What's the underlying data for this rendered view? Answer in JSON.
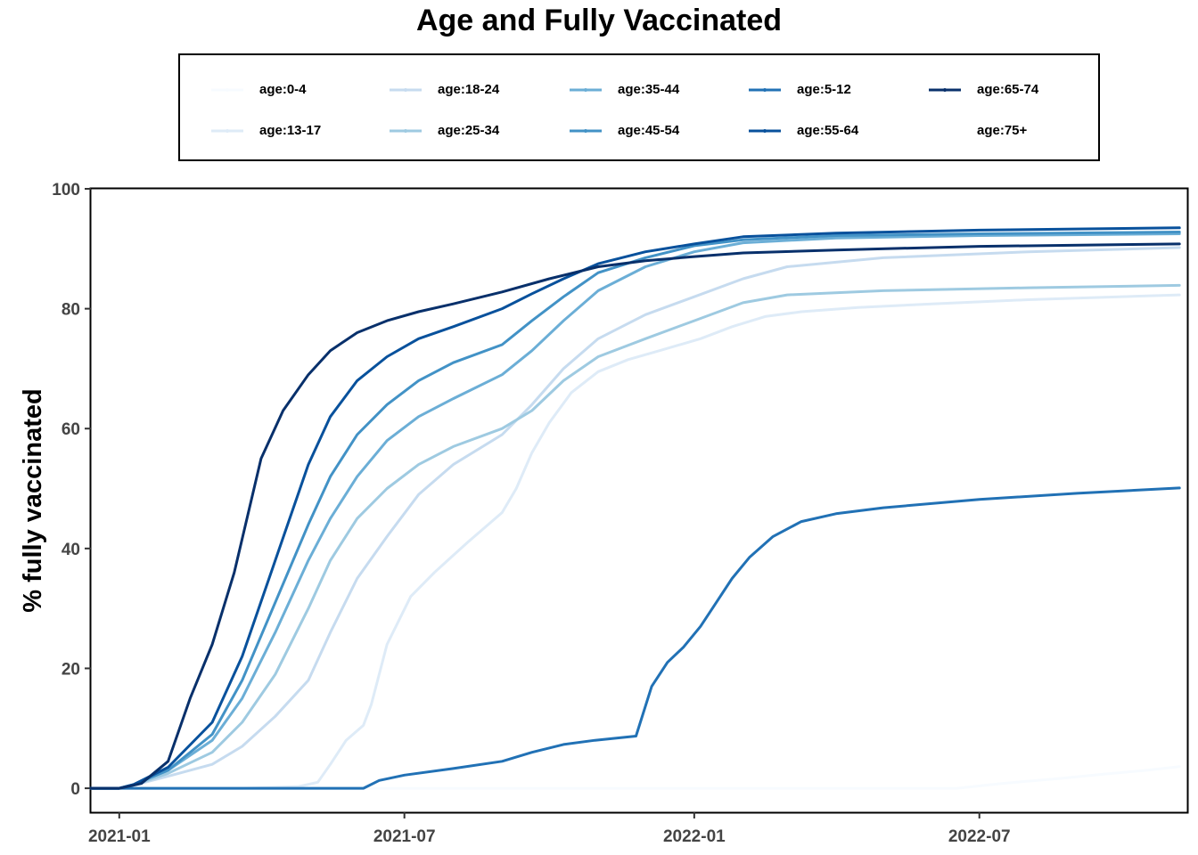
{
  "chart_data": {
    "type": "line",
    "title": "Age and Fully Vaccinated",
    "xlabel": "",
    "ylabel": "% fully vaccinated",
    "xlim": [
      "2020-12-14",
      "2022-11-10"
    ],
    "ylim": [
      -4,
      100
    ],
    "x_ticks": [
      "2021-01",
      "2021-07",
      "2022-01",
      "2022-07"
    ],
    "y_ticks": [
      0,
      20,
      40,
      60,
      80,
      100
    ],
    "grid": false,
    "legend_position": "top",
    "series": [
      {
        "name": "age:0-4",
        "color": "#f7fbff",
        "points": [
          [
            "2020-12-14",
            0
          ],
          [
            "2022-06-17",
            0
          ],
          [
            "2022-07-15",
            0.8
          ],
          [
            "2022-08-20",
            1.6
          ],
          [
            "2022-09-20",
            2.4
          ],
          [
            "2022-10-15",
            3.0
          ],
          [
            "2022-11-05",
            3.6
          ]
        ]
      },
      {
        "name": "age:13-17",
        "color": "#deebf7",
        "points": [
          [
            "2020-12-14",
            0
          ],
          [
            "2021-03-20",
            0
          ],
          [
            "2021-04-25",
            0.3
          ],
          [
            "2021-05-07",
            1.0
          ],
          [
            "2021-05-15",
            4.0
          ],
          [
            "2021-05-25",
            8.0
          ],
          [
            "2021-06-05",
            10.5
          ],
          [
            "2021-06-10",
            14
          ],
          [
            "2021-06-20",
            24
          ],
          [
            "2021-07-05",
            32
          ],
          [
            "2021-07-20",
            36
          ],
          [
            "2021-08-10",
            41
          ],
          [
            "2021-09-01",
            46
          ],
          [
            "2021-09-10",
            50
          ],
          [
            "2021-09-20",
            56
          ],
          [
            "2021-10-01",
            61
          ],
          [
            "2021-10-15",
            66
          ],
          [
            "2021-11-01",
            69.5
          ],
          [
            "2021-11-20",
            71.5
          ],
          [
            "2021-12-10",
            73
          ],
          [
            "2022-01-05",
            75
          ],
          [
            "2022-01-25",
            77
          ],
          [
            "2022-02-15",
            78.7
          ],
          [
            "2022-03-10",
            79.5
          ],
          [
            "2022-04-15",
            80.2
          ],
          [
            "2022-06-01",
            80.8
          ],
          [
            "2022-08-01",
            81.5
          ],
          [
            "2022-11-05",
            82.3
          ]
        ]
      },
      {
        "name": "age:18-24",
        "color": "#c6dbef",
        "points": [
          [
            "2020-12-14",
            0
          ],
          [
            "2021-01-01",
            0
          ],
          [
            "2021-01-10",
            0.5
          ],
          [
            "2021-02-01",
            2
          ],
          [
            "2021-03-01",
            4
          ],
          [
            "2021-03-20",
            7
          ],
          [
            "2021-04-10",
            12
          ],
          [
            "2021-05-01",
            18
          ],
          [
            "2021-05-15",
            26
          ],
          [
            "2021-06-01",
            35
          ],
          [
            "2021-06-20",
            42
          ],
          [
            "2021-07-10",
            49
          ],
          [
            "2021-08-01",
            54
          ],
          [
            "2021-09-01",
            59
          ],
          [
            "2021-09-20",
            64
          ],
          [
            "2021-10-10",
            70
          ],
          [
            "2021-11-01",
            75
          ],
          [
            "2021-12-01",
            79
          ],
          [
            "2022-01-01",
            82
          ],
          [
            "2022-02-01",
            85
          ],
          [
            "2022-03-01",
            87
          ],
          [
            "2022-05-01",
            88.5
          ],
          [
            "2022-08-01",
            89.5
          ],
          [
            "2022-11-05",
            90.2
          ]
        ]
      },
      {
        "name": "age:25-34",
        "color": "#9ecae1",
        "points": [
          [
            "2020-12-14",
            0
          ],
          [
            "2021-01-01",
            0
          ],
          [
            "2021-01-10",
            0.5
          ],
          [
            "2021-02-01",
            2.5
          ],
          [
            "2021-03-01",
            6
          ],
          [
            "2021-03-20",
            11
          ],
          [
            "2021-04-10",
            19
          ],
          [
            "2021-05-01",
            30
          ],
          [
            "2021-05-15",
            38
          ],
          [
            "2021-06-01",
            45
          ],
          [
            "2021-06-20",
            50
          ],
          [
            "2021-07-10",
            54
          ],
          [
            "2021-08-01",
            57
          ],
          [
            "2021-09-01",
            60
          ],
          [
            "2021-09-20",
            63
          ],
          [
            "2021-10-10",
            68
          ],
          [
            "2021-11-01",
            72
          ],
          [
            "2021-12-01",
            75
          ],
          [
            "2022-01-01",
            78
          ],
          [
            "2022-02-01",
            81
          ],
          [
            "2022-03-01",
            82.3
          ],
          [
            "2022-05-01",
            83
          ],
          [
            "2022-08-01",
            83.5
          ],
          [
            "2022-11-05",
            83.9
          ]
        ]
      },
      {
        "name": "age:35-44",
        "color": "#6baed6",
        "points": [
          [
            "2020-12-14",
            0
          ],
          [
            "2021-01-01",
            0
          ],
          [
            "2021-01-10",
            0.6
          ],
          [
            "2021-02-01",
            3
          ],
          [
            "2021-03-01",
            8
          ],
          [
            "2021-03-20",
            15
          ],
          [
            "2021-04-10",
            26
          ],
          [
            "2021-05-01",
            38
          ],
          [
            "2021-05-15",
            45
          ],
          [
            "2021-06-01",
            52
          ],
          [
            "2021-06-20",
            58
          ],
          [
            "2021-07-10",
            62
          ],
          [
            "2021-08-01",
            65
          ],
          [
            "2021-09-01",
            69
          ],
          [
            "2021-09-20",
            73
          ],
          [
            "2021-10-10",
            78
          ],
          [
            "2021-11-01",
            83
          ],
          [
            "2021-12-01",
            87
          ],
          [
            "2022-01-01",
            89.5
          ],
          [
            "2022-02-01",
            91
          ],
          [
            "2022-04-01",
            91.8
          ],
          [
            "2022-07-01",
            92.2
          ],
          [
            "2022-11-05",
            92.5
          ]
        ]
      },
      {
        "name": "age:45-54",
        "color": "#4292c6",
        "points": [
          [
            "2020-12-14",
            0
          ],
          [
            "2021-01-01",
            0
          ],
          [
            "2021-01-10",
            0.6
          ],
          [
            "2021-02-01",
            3
          ],
          [
            "2021-03-01",
            9
          ],
          [
            "2021-03-20",
            18
          ],
          [
            "2021-04-10",
            31
          ],
          [
            "2021-05-01",
            44
          ],
          [
            "2021-05-15",
            52
          ],
          [
            "2021-06-01",
            59
          ],
          [
            "2021-06-20",
            64
          ],
          [
            "2021-07-10",
            68
          ],
          [
            "2021-08-01",
            71
          ],
          [
            "2021-09-01",
            74
          ],
          [
            "2021-09-20",
            78
          ],
          [
            "2021-10-10",
            82
          ],
          [
            "2021-11-01",
            86
          ],
          [
            "2021-12-01",
            88.5
          ],
          [
            "2022-01-01",
            90.5
          ],
          [
            "2022-02-01",
            91.5
          ],
          [
            "2022-04-01",
            92.2
          ],
          [
            "2022-07-01",
            92.5
          ],
          [
            "2022-11-05",
            92.8
          ]
        ]
      },
      {
        "name": "age:5-12",
        "color": "#2171b5",
        "points": [
          [
            "2020-12-14",
            0
          ],
          [
            "2021-06-05",
            0
          ],
          [
            "2021-06-15",
            1.3
          ],
          [
            "2021-07-01",
            2.2
          ],
          [
            "2021-08-01",
            3.3
          ],
          [
            "2021-09-01",
            4.5
          ],
          [
            "2021-09-20",
            6
          ],
          [
            "2021-10-10",
            7.3
          ],
          [
            "2021-10-30",
            8
          ],
          [
            "2021-11-25",
            8.7
          ],
          [
            "2021-12-05",
            17
          ],
          [
            "2021-12-15",
            21
          ],
          [
            "2021-12-25",
            23.5
          ],
          [
            "2022-01-05",
            27
          ],
          [
            "2022-01-15",
            31
          ],
          [
            "2022-01-25",
            35
          ],
          [
            "2022-02-05",
            38.5
          ],
          [
            "2022-02-20",
            42
          ],
          [
            "2022-03-10",
            44.5
          ],
          [
            "2022-04-01",
            45.8
          ],
          [
            "2022-05-01",
            46.8
          ],
          [
            "2022-07-01",
            48.2
          ],
          [
            "2022-09-01",
            49.2
          ],
          [
            "2022-11-05",
            50.1
          ]
        ]
      },
      {
        "name": "age:55-64",
        "color": "#08519c",
        "points": [
          [
            "2020-12-14",
            0
          ],
          [
            "2021-01-01",
            0
          ],
          [
            "2021-01-10",
            0.6
          ],
          [
            "2021-02-01",
            3.5
          ],
          [
            "2021-03-01",
            11
          ],
          [
            "2021-03-20",
            22
          ],
          [
            "2021-04-10",
            38
          ],
          [
            "2021-05-01",
            54
          ],
          [
            "2021-05-15",
            62
          ],
          [
            "2021-06-01",
            68
          ],
          [
            "2021-06-20",
            72
          ],
          [
            "2021-07-10",
            75
          ],
          [
            "2021-08-01",
            77
          ],
          [
            "2021-09-01",
            80
          ],
          [
            "2021-09-20",
            82.5
          ],
          [
            "2021-10-10",
            85
          ],
          [
            "2021-11-01",
            87.5
          ],
          [
            "2021-12-01",
            89.5
          ],
          [
            "2022-01-01",
            90.8
          ],
          [
            "2022-02-01",
            92
          ],
          [
            "2022-04-01",
            92.6
          ],
          [
            "2022-07-01",
            93.1
          ],
          [
            "2022-11-05",
            93.5
          ]
        ]
      },
      {
        "name": "age:65-74",
        "color": "#08306b",
        "points": [
          [
            "2020-12-14",
            0
          ],
          [
            "2021-01-01",
            0
          ],
          [
            "2021-01-15",
            0.8
          ],
          [
            "2021-02-01",
            4.5
          ],
          [
            "2021-02-15",
            15
          ],
          [
            "2021-03-01",
            24
          ],
          [
            "2021-03-15",
            36
          ],
          [
            "2021-04-01",
            55
          ],
          [
            "2021-04-15",
            63
          ],
          [
            "2021-05-01",
            69
          ],
          [
            "2021-05-15",
            73
          ],
          [
            "2021-06-01",
            76
          ],
          [
            "2021-06-20",
            78
          ],
          [
            "2021-07-10",
            79.5
          ],
          [
            "2021-08-01",
            80.8
          ],
          [
            "2021-09-01",
            82.8
          ],
          [
            "2021-10-01",
            85
          ],
          [
            "2021-11-01",
            87
          ],
          [
            "2021-12-01",
            88
          ],
          [
            "2022-01-01",
            88.7
          ],
          [
            "2022-02-01",
            89.3
          ],
          [
            "2022-04-01",
            89.8
          ],
          [
            "2022-07-01",
            90.4
          ],
          [
            "2022-11-05",
            90.8
          ]
        ]
      },
      {
        "name": "age:75+",
        "color": "#ffffff",
        "points": []
      }
    ]
  }
}
